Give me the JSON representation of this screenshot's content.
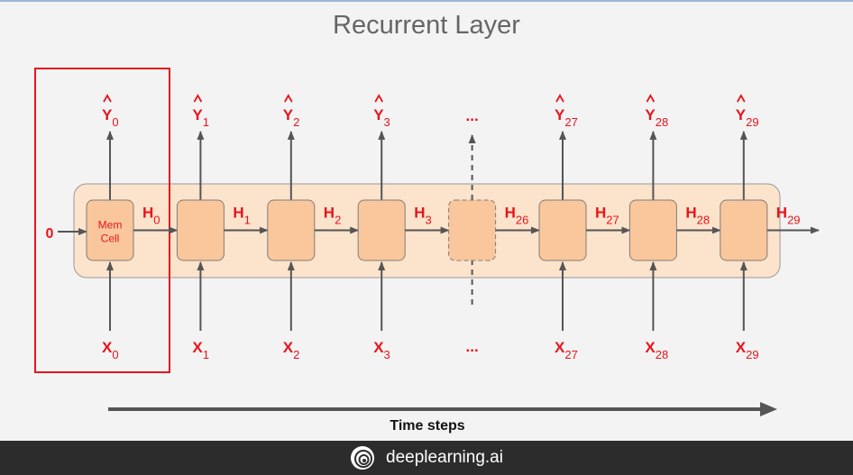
{
  "title": "Recurrent Layer",
  "initial_state": "0",
  "cell_label_line1": "Mem",
  "cell_label_line2": "Cell",
  "cells": [
    {
      "x_base": "X",
      "x_sub": "0",
      "y_base": "Y",
      "y_sub": "0",
      "h_base": "H",
      "h_sub": "0",
      "dashed": false
    },
    {
      "x_base": "X",
      "x_sub": "1",
      "y_base": "Y",
      "y_sub": "1",
      "h_base": "H",
      "h_sub": "1",
      "dashed": false
    },
    {
      "x_base": "X",
      "x_sub": "2",
      "y_base": "Y",
      "y_sub": "2",
      "h_base": "H",
      "h_sub": "2",
      "dashed": false
    },
    {
      "x_base": "X",
      "x_sub": "3",
      "y_base": "Y",
      "y_sub": "3",
      "h_base": "H",
      "h_sub": "3",
      "dashed": false
    },
    {
      "x_base": "...",
      "x_sub": "",
      "y_base": "...",
      "y_sub": "",
      "h_base": "H",
      "h_sub": "26",
      "dashed": true
    },
    {
      "x_base": "X",
      "x_sub": "27",
      "y_base": "Y",
      "y_sub": "27",
      "h_base": "H",
      "h_sub": "27",
      "dashed": false
    },
    {
      "x_base": "X",
      "x_sub": "28",
      "y_base": "Y",
      "y_sub": "28",
      "h_base": "H",
      "h_sub": "28",
      "dashed": false
    },
    {
      "x_base": "X",
      "x_sub": "29",
      "y_base": "Y",
      "y_sub": "29",
      "h_base": "H",
      "h_sub": "29",
      "dashed": false
    }
  ],
  "time_label": "Time steps",
  "footer_brand": "deeplearning.ai",
  "colors": {
    "accent_red": "#e8141b",
    "cell_fill": "#f9c79b",
    "cell_stroke": "#7d7d7d",
    "layer_fill": "#fce3cc",
    "arrow": "#555555"
  }
}
